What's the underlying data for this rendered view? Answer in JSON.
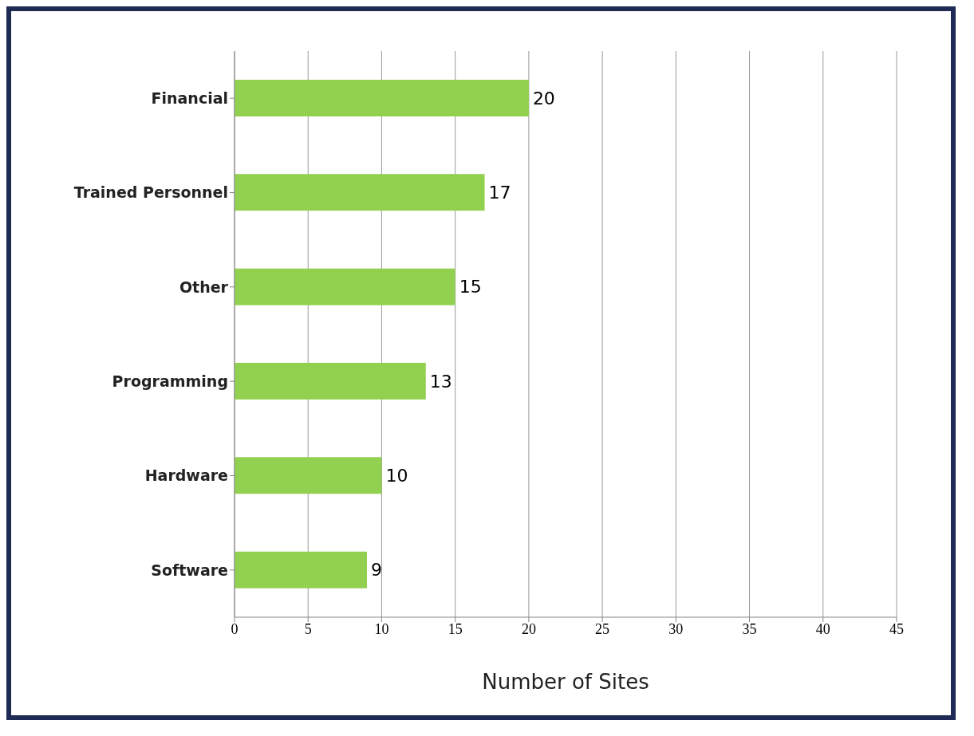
{
  "chart_data": {
    "type": "bar",
    "orientation": "horizontal",
    "xlabel": "Number of Sites",
    "categories": [
      "Financial",
      "Trained Personnel",
      "Other",
      "Programming",
      "Hardware",
      "Software"
    ],
    "values": [
      20,
      17,
      15,
      13,
      10,
      9
    ],
    "color": "#92d050",
    "xlim": [
      0,
      45
    ],
    "xticks": [
      0,
      5,
      10,
      15,
      20,
      25,
      30,
      35,
      40,
      45
    ],
    "grid": "x",
    "data_labels": true
  }
}
